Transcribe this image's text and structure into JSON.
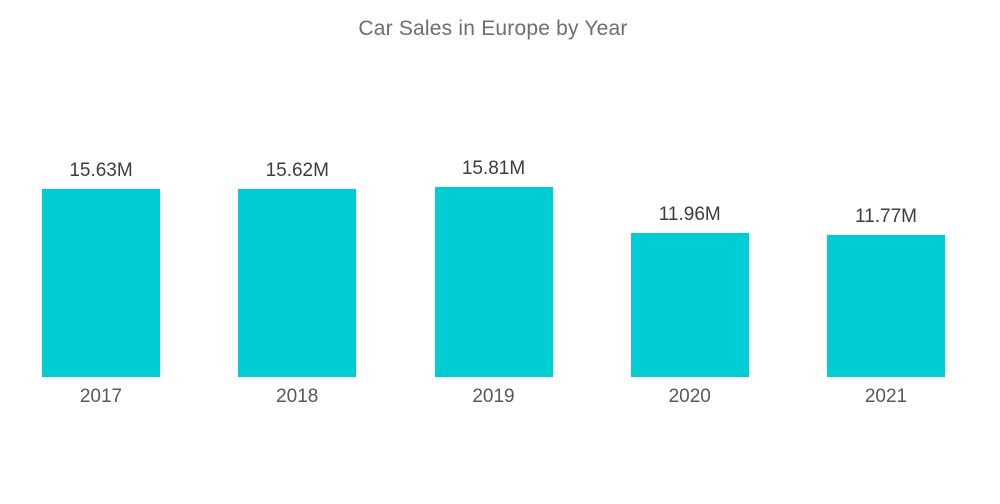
{
  "title": "Car Sales in Europe by Year",
  "colors": {
    "bar": "#00ccd4",
    "title_text": "#6e6e6e",
    "value_text": "#3d3d3d",
    "year_text": "#585858",
    "background": "#ffffff"
  },
  "chart_data": {
    "type": "bar",
    "title": "Car Sales in Europe by Year",
    "categories": [
      "2017",
      "2018",
      "2019",
      "2020",
      "2021"
    ],
    "values": [
      15.63,
      15.62,
      15.81,
      11.96,
      11.77
    ],
    "value_labels": [
      "15.63M",
      "15.62M",
      "15.81M",
      "11.96M",
      "11.77M"
    ],
    "unit": "M",
    "xlabel": "",
    "ylabel": "",
    "ylim": [
      0,
      15.81
    ],
    "grid": false,
    "legend": false,
    "axes_visible": false,
    "bar_color": "#00ccd4"
  }
}
